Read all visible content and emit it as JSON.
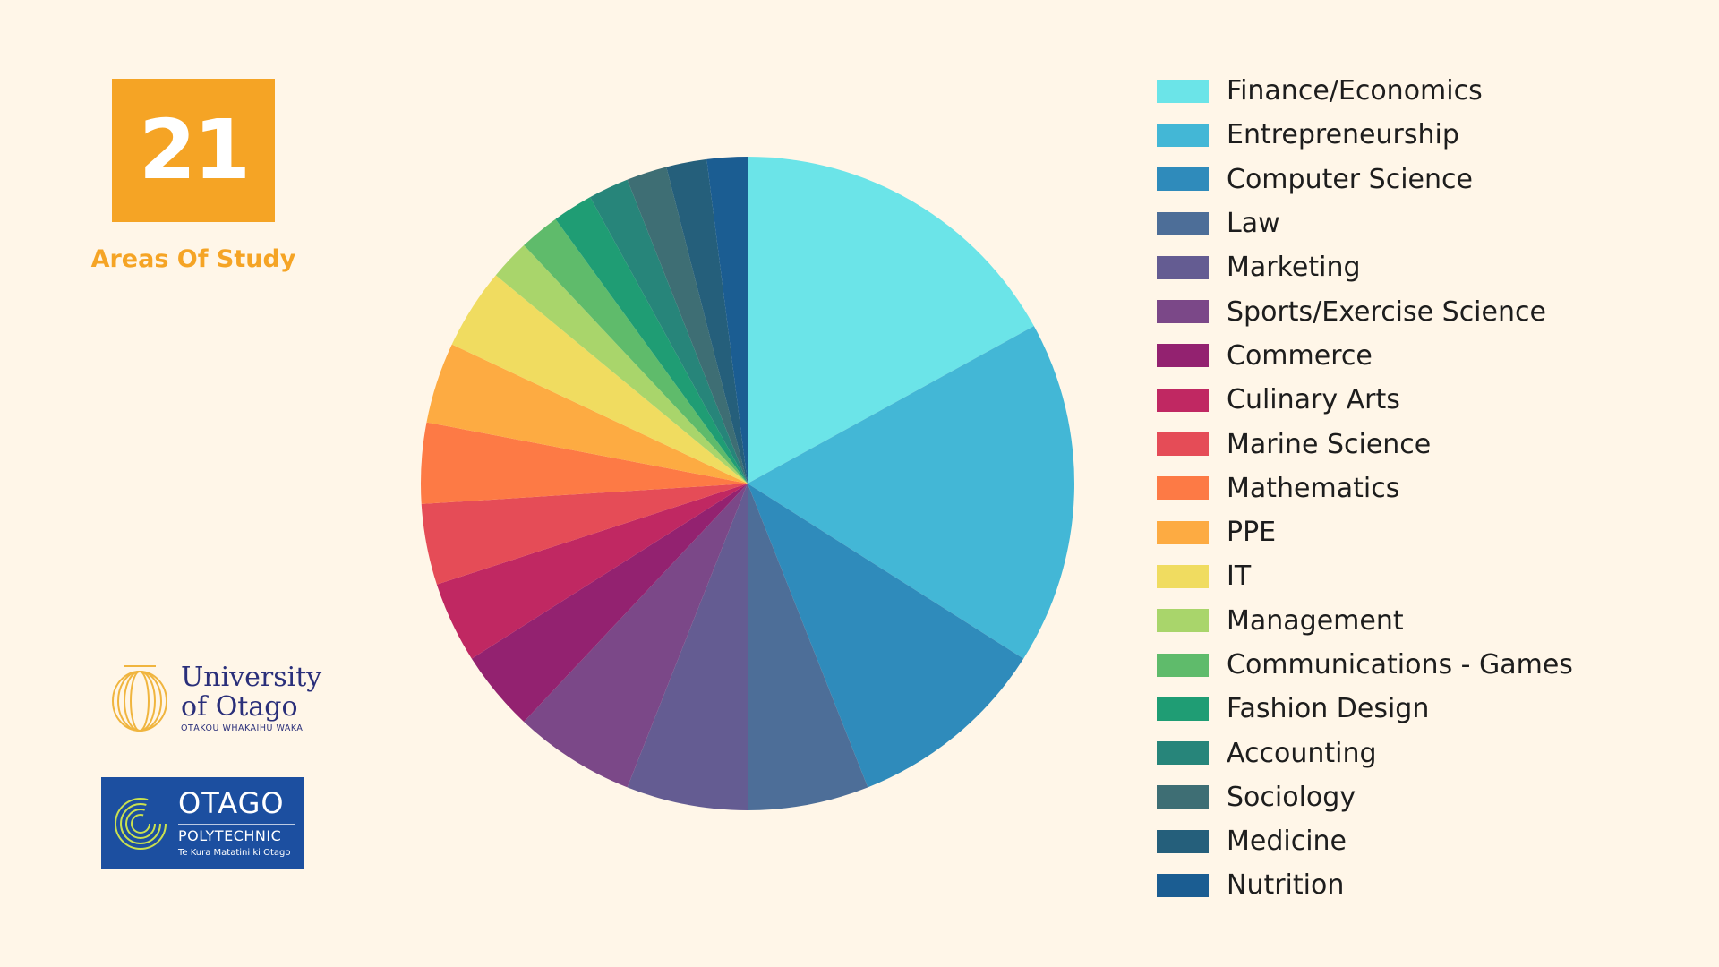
{
  "stat": {
    "number": "21",
    "caption": "Areas Of Study"
  },
  "logos": {
    "university": {
      "line1": "University",
      "line2": "of Otago",
      "subtitle": "ŌTĀKOU WHAKAIHU WAKA"
    },
    "polytechnic": {
      "name": "OTAGO",
      "sub": "POLYTECHNIC",
      "tagline": "Te Kura Matatini ki Otago"
    }
  },
  "colors": {
    "background": "#fff6e8",
    "accent": "#f5a425",
    "polytechnic_blue": "#1c4fa0",
    "university_gold": "#f0b53f"
  },
  "chart_data": {
    "type": "pie",
    "categories": [
      "Finance/Economics",
      "Entrepreneurship",
      "Computer Science",
      "Law",
      "Marketing",
      "Sports/Exercise Science",
      "Commerce",
      "Culinary Arts",
      "Marine Science",
      "Mathematics",
      "PPE",
      "IT",
      "Management",
      "Communications - Games",
      "Fashion Design",
      "Accounting",
      "Sociology",
      "Medicine",
      "Nutrition"
    ],
    "values": [
      8.5,
      8.5,
      5,
      3,
      3,
      3,
      2,
      2,
      2,
      2,
      2,
      2,
      1,
      1,
      1,
      1,
      1,
      1,
      1
    ],
    "colors": [
      "#6be4e8",
      "#43b7d6",
      "#2f8bbb",
      "#4d6e98",
      "#645c92",
      "#7b4888",
      "#932270",
      "#c02862",
      "#e54c57",
      "#fd7a45",
      "#fdab42",
      "#f0dc60",
      "#a9d56b",
      "#5fbb6b",
      "#1f9d74",
      "#27857a",
      "#3e6e74",
      "#255f7b",
      "#1b5d92"
    ],
    "legend_position": "right"
  }
}
